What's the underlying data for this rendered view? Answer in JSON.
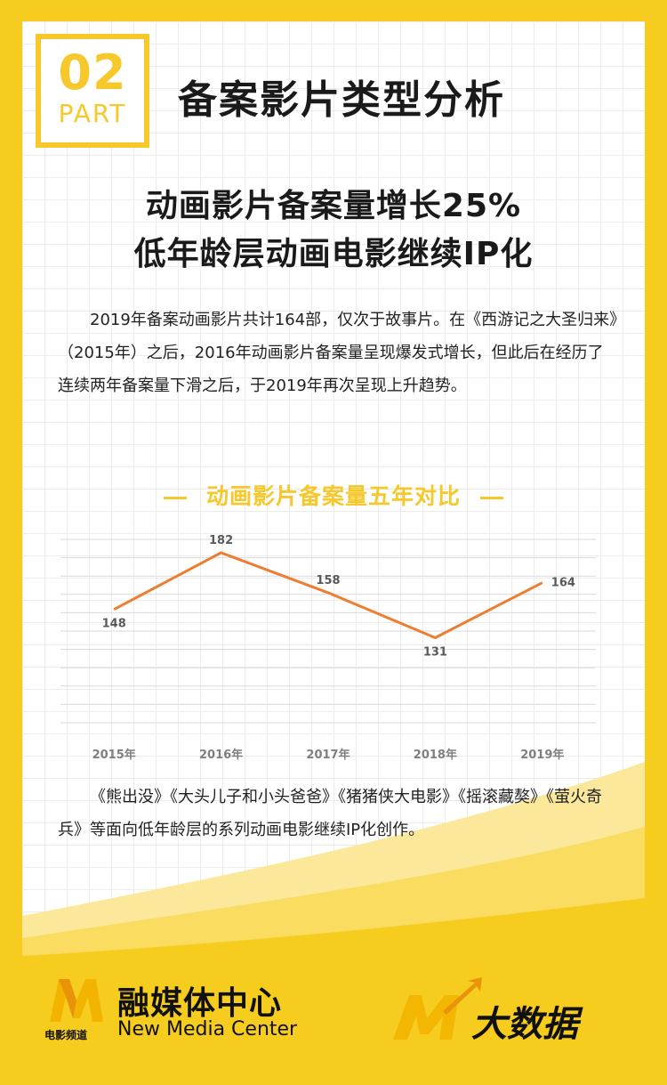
{
  "header": {
    "badge_number": "02",
    "badge_part": "PART",
    "section_title": "备案影片类型分析"
  },
  "headline": {
    "line1": "动画影片备案量增长25%",
    "line2": "低年龄层动画电影继续IP化"
  },
  "paragraph1": "2019年备案动画影片共计164部，仅次于故事片。在《西游记之大圣归来》（2015年）之后，2016年动画影片备案量呈现爆发式增长，但此后在经历了连续两年备案量下滑之后，于2019年再次呈现上升趋势。",
  "chart_title": "动画影片备案量五年对比",
  "chart_data": {
    "type": "line",
    "categories": [
      "2015年",
      "2016年",
      "2017年",
      "2018年",
      "2019年"
    ],
    "series": [
      {
        "values": [
          148,
          182,
          158,
          131,
          164
        ]
      }
    ],
    "ylim": [
      80,
      190
    ],
    "grid": true,
    "line_color": "#ed7d31"
  },
  "paragraph2": "《熊出没》《大头儿子和小头爸爸》《猪猪侠大电影》《摇滚藏獒》《萤火奇兵》等面向低年龄层的系列动画电影继续IP化创作。",
  "footer": {
    "logo_cn": "融媒体中心",
    "logo_en": "New Media Center",
    "logo_sub": "电影频道",
    "bigdata_label": "大数据"
  },
  "colors": {
    "brand_yellow": "#f7c82b",
    "background_yellow": "#f6cd1e",
    "line_orange": "#ed7d31"
  }
}
